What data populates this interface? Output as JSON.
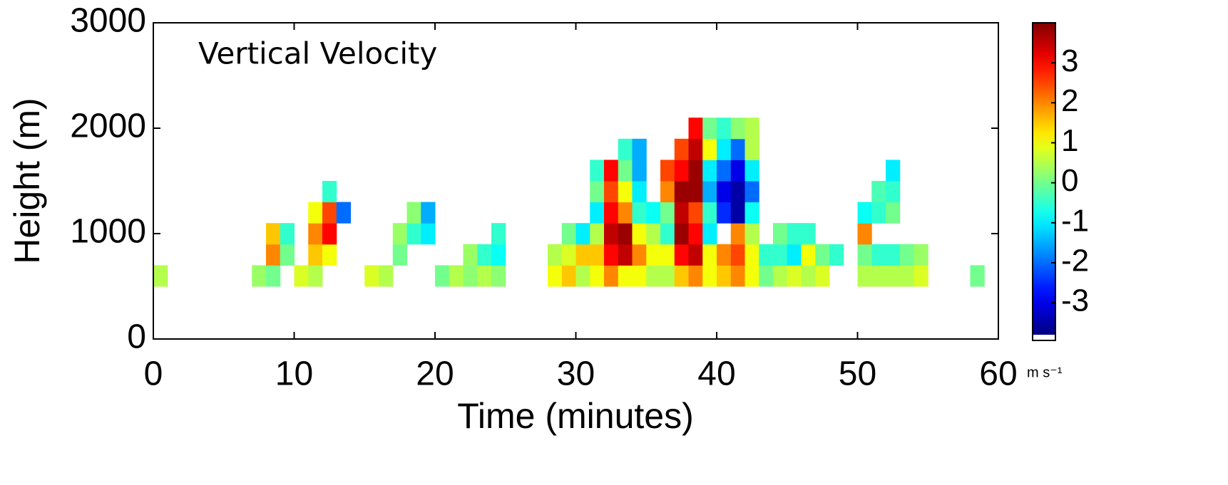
{
  "chart_data": {
    "type": "heatmap",
    "annotation": "Vertical Velocity",
    "x_label": "Time (minutes)",
    "y_label": "Height (m)",
    "colorbar_label": "m s⁻¹",
    "colormap": "jet",
    "xlim": [
      0,
      60
    ],
    "xticks": [
      0,
      10,
      20,
      30,
      40,
      50,
      60
    ],
    "ylim": [
      0,
      3000
    ],
    "yticks": [
      0,
      1000,
      2000,
      3000
    ],
    "clim": [
      -3.8,
      4
    ],
    "cticks": [
      -3,
      -2,
      -1,
      0,
      1,
      2,
      3
    ],
    "xbins": [
      0,
      1,
      2,
      3,
      4,
      5,
      6,
      7,
      8,
      9,
      10,
      11,
      12,
      13,
      14,
      15,
      16,
      17,
      18,
      19,
      20,
      21,
      22,
      23,
      24,
      25,
      26,
      27,
      28,
      29,
      30,
      31,
      32,
      33,
      34,
      35,
      36,
      37,
      38,
      39,
      40,
      41,
      42,
      43,
      44,
      45,
      46,
      47,
      48,
      49,
      50,
      51,
      52,
      53,
      54,
      55,
      56,
      57,
      58,
      59,
      60
    ],
    "ybins": [
      500,
      700,
      900,
      1100,
      1300,
      1500,
      1700,
      1900,
      2100
    ],
    "z": [
      [
        0.5,
        null,
        null,
        null,
        null,
        null,
        null,
        0.3,
        0,
        null,
        0.8,
        0.5,
        null,
        null,
        null,
        0.8,
        0.5,
        null,
        null,
        null,
        0,
        0.5,
        0.2,
        0.5,
        0.2,
        null,
        null,
        null,
        1,
        1.5,
        0.5,
        1,
        2,
        1,
        1,
        0.5,
        0.5,
        1.5,
        2,
        1,
        1.5,
        2,
        1,
        0,
        0.5,
        0.8,
        0.5,
        0.8,
        null,
        null,
        0.5,
        0.5,
        0.5,
        0.5,
        0.8,
        null,
        null,
        null,
        0,
        null
      ],
      [
        null,
        null,
        null,
        null,
        null,
        null,
        null,
        null,
        2,
        0,
        null,
        1.5,
        1,
        null,
        null,
        null,
        null,
        0,
        null,
        null,
        null,
        null,
        0.3,
        -0.5,
        -0.8,
        null,
        null,
        null,
        0.5,
        0.8,
        1.5,
        1.5,
        3,
        3.5,
        2,
        1,
        1,
        3,
        3.5,
        1,
        2,
        2.5,
        1,
        -0.5,
        -0.5,
        -1,
        1,
        0,
        -0.5,
        null,
        0,
        -0.5,
        -0.5,
        0,
        0.3,
        null,
        null,
        null,
        null,
        null
      ],
      [
        null,
        null,
        null,
        null,
        null,
        null,
        null,
        null,
        1.5,
        -0.5,
        null,
        2,
        3,
        null,
        null,
        null,
        null,
        0.3,
        -0.5,
        -1,
        null,
        null,
        null,
        null,
        -0.5,
        null,
        null,
        null,
        null,
        0,
        -1,
        0.5,
        3.5,
        3.8,
        1,
        0.5,
        -0.5,
        3.8,
        3,
        -1,
        null,
        2,
        0.5,
        null,
        0,
        -0.5,
        -0.5,
        null,
        null,
        null,
        2,
        null,
        null,
        null,
        null,
        null,
        null,
        null,
        null,
        null
      ],
      [
        null,
        null,
        null,
        null,
        null,
        null,
        null,
        null,
        null,
        null,
        null,
        1,
        2.5,
        -2,
        null,
        null,
        null,
        null,
        0.2,
        -1.5,
        null,
        null,
        null,
        null,
        null,
        null,
        null,
        null,
        null,
        null,
        null,
        -1,
        3,
        2,
        -0.5,
        -0.8,
        0,
        3.5,
        2.5,
        -0.5,
        -2.5,
        -3.5,
        -0.8,
        null,
        null,
        null,
        null,
        null,
        null,
        null,
        -0.8,
        -0.5,
        0,
        null,
        null,
        null,
        null,
        null,
        null,
        null
      ],
      [
        null,
        null,
        null,
        null,
        null,
        null,
        null,
        null,
        null,
        null,
        null,
        null,
        -0.5,
        null,
        null,
        null,
        null,
        null,
        null,
        null,
        null,
        null,
        null,
        null,
        null,
        null,
        null,
        null,
        null,
        null,
        null,
        0,
        2.5,
        1,
        -1,
        null,
        2,
        3.8,
        3.8,
        -1.5,
        -3,
        -3.5,
        -2,
        null,
        null,
        null,
        null,
        null,
        null,
        null,
        null,
        -0.3,
        -0.5,
        null,
        null,
        null,
        null,
        null,
        null,
        null
      ],
      [
        null,
        null,
        null,
        null,
        null,
        null,
        null,
        null,
        null,
        null,
        null,
        null,
        null,
        null,
        null,
        null,
        null,
        null,
        null,
        null,
        null,
        null,
        null,
        null,
        null,
        null,
        null,
        null,
        null,
        null,
        null,
        -0.5,
        3,
        0,
        -1.5,
        null,
        2.5,
        3,
        3.8,
        -1,
        -2,
        -3,
        -1,
        null,
        null,
        null,
        null,
        null,
        null,
        null,
        null,
        null,
        -1,
        null,
        null,
        null,
        null,
        null,
        null,
        null
      ],
      [
        null,
        null,
        null,
        null,
        null,
        null,
        null,
        null,
        null,
        null,
        null,
        null,
        null,
        null,
        null,
        null,
        null,
        null,
        null,
        null,
        null,
        null,
        null,
        null,
        null,
        null,
        null,
        null,
        null,
        null,
        null,
        null,
        null,
        -0.5,
        -1.5,
        null,
        null,
        2.5,
        3.5,
        1,
        -1,
        -2,
        0.5,
        null,
        null,
        null,
        null,
        null,
        null,
        null,
        null,
        null,
        null,
        null,
        null,
        null,
        null,
        null,
        null,
        null
      ],
      [
        null,
        null,
        null,
        null,
        null,
        null,
        null,
        null,
        null,
        null,
        null,
        null,
        null,
        null,
        null,
        null,
        null,
        null,
        null,
        null,
        null,
        null,
        null,
        null,
        null,
        null,
        null,
        null,
        null,
        null,
        null,
        null,
        null,
        null,
        null,
        null,
        null,
        null,
        3,
        0,
        -0.5,
        0.2,
        0.5,
        null,
        null,
        null,
        null,
        null,
        null,
        null,
        null,
        null,
        null,
        null,
        null,
        null,
        null,
        null,
        null,
        null
      ]
    ]
  }
}
